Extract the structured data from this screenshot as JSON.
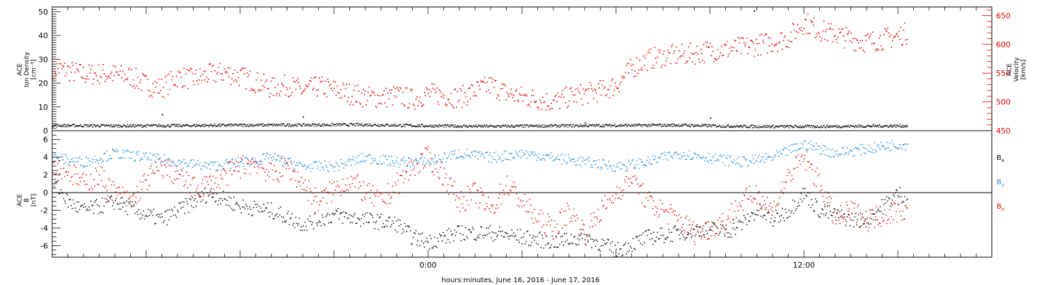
{
  "chart_data": [
    {
      "type": "scatter",
      "panel": "top",
      "ylabel_left": [
        "ACE",
        "Ion Density",
        "[cm⁻³]"
      ],
      "ylabel_right": [
        "ACE",
        "Velocity",
        "[km/s]"
      ],
      "ylim_left": [
        0,
        52
      ],
      "ylim_right": [
        450,
        665
      ],
      "yticks_left": [
        0,
        10,
        20,
        30,
        40,
        50
      ],
      "yticks_right": [
        450,
        500,
        550,
        600,
        650
      ],
      "right_axis_color": "#e00000",
      "series": [
        {
          "name": "Ion Density",
          "axis": "left",
          "color": "#000000",
          "points": [
            [
              -12,
              2.4
            ],
            [
              -10,
              2.2
            ],
            [
              -8,
              2.3
            ],
            [
              -6,
              2.5
            ],
            [
              -4,
              2.6
            ],
            [
              -2,
              2.7
            ],
            [
              0,
              2.2
            ],
            [
              2,
              2.0
            ],
            [
              4,
              2.2
            ],
            [
              6,
              2.4
            ],
            [
              8,
              2.5
            ],
            [
              10,
              2.0
            ],
            [
              12,
              1.9
            ],
            [
              14,
              2.1
            ],
            [
              15,
              2.2
            ]
          ],
          "extra_points": [
            [
              -8.5,
              7
            ],
            [
              -4,
              6
            ],
            [
              5,
              3.5
            ],
            [
              9,
              5.5
            ],
            [
              10.4,
              50.5
            ]
          ]
        },
        {
          "name": "Velocity",
          "axis": "right",
          "color": "#e00000",
          "points": [
            [
              -12,
              560
            ],
            [
              -11.5,
              555
            ],
            [
              -11,
              548
            ],
            [
              -10.5,
              550
            ],
            [
              -10,
              548
            ],
            [
              -9.5,
              545
            ],
            [
              -9,
              530
            ],
            [
              -8.5,
              525
            ],
            [
              -8,
              545
            ],
            [
              -7.5,
              540
            ],
            [
              -7,
              548
            ],
            [
              -6.5,
              552
            ],
            [
              -6,
              545
            ],
            [
              -5.5,
              535
            ],
            [
              -5,
              525
            ],
            [
              -4.5,
              530
            ],
            [
              -4,
              520
            ],
            [
              -3.5,
              528
            ],
            [
              -3,
              522
            ],
            [
              -2.5,
              515
            ],
            [
              -2,
              510
            ],
            [
              -1.5,
              508
            ],
            [
              -1,
              512
            ],
            [
              -0.5,
              505
            ],
            [
              0,
              515
            ],
            [
              0.5,
              512
            ],
            [
              1,
              508
            ],
            [
              1.5,
              520
            ],
            [
              2,
              530
            ],
            [
              2.5,
              515
            ],
            [
              3,
              510
            ],
            [
              3.5,
              505
            ],
            [
              4,
              500
            ],
            [
              4.5,
              510
            ],
            [
              5,
              515
            ],
            [
              5.5,
              520
            ],
            [
              6,
              530
            ],
            [
              6.5,
              560
            ],
            [
              7,
              575
            ],
            [
              7.5,
              580
            ],
            [
              8,
              582
            ],
            [
              8.5,
              585
            ],
            [
              9,
              590
            ],
            [
              9.5,
              592
            ],
            [
              10,
              595
            ],
            [
              10.5,
              600
            ],
            [
              11,
              605
            ],
            [
              11.5,
              612
            ],
            [
              12,
              640
            ],
            [
              12.5,
              625
            ],
            [
              13,
              618
            ],
            [
              13.5,
              610
            ],
            [
              14,
              605
            ],
            [
              14.5,
              610
            ],
            [
              15,
              615
            ],
            [
              15.2,
              620
            ]
          ]
        }
      ]
    },
    {
      "type": "scatter",
      "panel": "bottom",
      "ylabel_left": [
        "ACE",
        "B",
        "[nT]"
      ],
      "ylim": [
        -7.3,
        7
      ],
      "yticks": [
        -6,
        -4,
        -2,
        0,
        2,
        4,
        6
      ],
      "zero_line": true,
      "legend_placement": "right",
      "xlabel": "hours:minutes, June 16, 2016 - June 17, 2016",
      "xlim_hours": [
        -12,
        18
      ],
      "xticks": [
        {
          "h": 0,
          "label": "0:00"
        },
        {
          "h": 12,
          "label": "12:00"
        }
      ],
      "series": [
        {
          "name": "Bx",
          "color": "#000000",
          "points": [
            [
              -12,
              1.5
            ],
            [
              -11.5,
              -1
            ],
            [
              -11,
              -2
            ],
            [
              -10.5,
              -1.5
            ],
            [
              -10,
              -1
            ],
            [
              -9,
              -2.5
            ],
            [
              -8.5,
              -3
            ],
            [
              -8,
              -2
            ],
            [
              -7,
              0
            ],
            [
              -6,
              -1.5
            ],
            [
              -5,
              -2
            ],
            [
              -4,
              -3.5
            ],
            [
              -3,
              -2.5
            ],
            [
              -2,
              -3
            ],
            [
              -1,
              -3.5
            ],
            [
              -0.5,
              -5
            ],
            [
              0,
              -5.5
            ],
            [
              1,
              -4.5
            ],
            [
              2,
              -4.5
            ],
            [
              3,
              -5
            ],
            [
              4,
              -5.5
            ],
            [
              5,
              -5
            ],
            [
              6,
              -6.5
            ],
            [
              7,
              -5
            ],
            [
              8,
              -4.5
            ],
            [
              9,
              -4
            ],
            [
              9.5,
              -4.5
            ],
            [
              10,
              -3.5
            ],
            [
              10.5,
              -2
            ],
            [
              11,
              -3
            ],
            [
              11.5,
              -2
            ],
            [
              12,
              0
            ],
            [
              12.5,
              -2
            ],
            [
              13,
              -2.5
            ],
            [
              13.5,
              -3
            ],
            [
              14,
              -3
            ],
            [
              14.5,
              -1.5
            ],
            [
              15,
              0
            ],
            [
              15.2,
              -0.5
            ]
          ]
        },
        {
          "name": "By",
          "color": "#1e88d8",
          "points": [
            [
              -12,
              4
            ],
            [
              -11,
              3.5
            ],
            [
              -10,
              4.5
            ],
            [
              -9,
              4
            ],
            [
              -8,
              3.5
            ],
            [
              -7,
              3
            ],
            [
              -6,
              3.5
            ],
            [
              -5,
              4
            ],
            [
              -4,
              3
            ],
            [
              -3,
              3
            ],
            [
              -2,
              4
            ],
            [
              -1,
              3.5
            ],
            [
              0,
              3.5
            ],
            [
              1,
              4.5
            ],
            [
              2,
              4
            ],
            [
              3,
              4.5
            ],
            [
              4,
              4
            ],
            [
              5,
              3.5
            ],
            [
              6,
              3
            ],
            [
              7,
              3.5
            ],
            [
              8,
              4.5
            ],
            [
              9,
              4
            ],
            [
              10,
              3.5
            ],
            [
              11,
              4
            ],
            [
              12,
              5.5
            ],
            [
              13,
              4.5
            ],
            [
              14,
              5
            ],
            [
              15,
              5.5
            ]
          ]
        },
        {
          "name": "Bz",
          "color": "#e00000",
          "points": [
            [
              -12,
              3.5
            ],
            [
              -11.5,
              2.5
            ],
            [
              -11,
              1
            ],
            [
              -10.5,
              2
            ],
            [
              -10,
              0
            ],
            [
              -9.5,
              -1
            ],
            [
              -9,
              1.5
            ],
            [
              -8.5,
              3
            ],
            [
              -8,
              2
            ],
            [
              -7.5,
              0.5
            ],
            [
              -7,
              1
            ],
            [
              -6.5,
              2
            ],
            [
              -6,
              3
            ],
            [
              -5.5,
              3.5
            ],
            [
              -5,
              2
            ],
            [
              -4.5,
              3
            ],
            [
              -4,
              1
            ],
            [
              -3.5,
              -1
            ],
            [
              -3,
              0.5
            ],
            [
              -2.5,
              1.5
            ],
            [
              -2,
              0
            ],
            [
              -1.5,
              -1
            ],
            [
              -1,
              1
            ],
            [
              -0.5,
              3
            ],
            [
              0,
              4
            ],
            [
              0.5,
              2
            ],
            [
              1,
              -1
            ],
            [
              1.5,
              0
            ],
            [
              2,
              -2
            ],
            [
              2.5,
              1
            ],
            [
              3,
              -1
            ],
            [
              3.5,
              -3
            ],
            [
              4,
              -4
            ],
            [
              4.5,
              -2
            ],
            [
              5,
              -4.5
            ],
            [
              5.5,
              -2
            ],
            [
              6,
              0
            ],
            [
              6.5,
              2
            ],
            [
              7,
              -1
            ],
            [
              7.5,
              -2
            ],
            [
              8,
              -3
            ],
            [
              8.5,
              -4.5
            ],
            [
              9,
              -4
            ],
            [
              9.5,
              -3
            ],
            [
              10,
              -1
            ],
            [
              10.5,
              0
            ],
            [
              11,
              -2
            ],
            [
              11.5,
              2
            ],
            [
              12,
              4
            ],
            [
              12.5,
              1
            ],
            [
              13,
              -3
            ],
            [
              13.5,
              -2
            ],
            [
              14,
              -3
            ],
            [
              14.5,
              -2.5
            ],
            [
              15,
              -2
            ]
          ]
        }
      ],
      "legend": [
        {
          "base": "B",
          "sub": "x",
          "color": "#000000"
        },
        {
          "base": "B",
          "sub": "y",
          "color": "#1e88d8"
        },
        {
          "base": "B",
          "sub": "z",
          "color": "#e00000"
        }
      ]
    }
  ]
}
